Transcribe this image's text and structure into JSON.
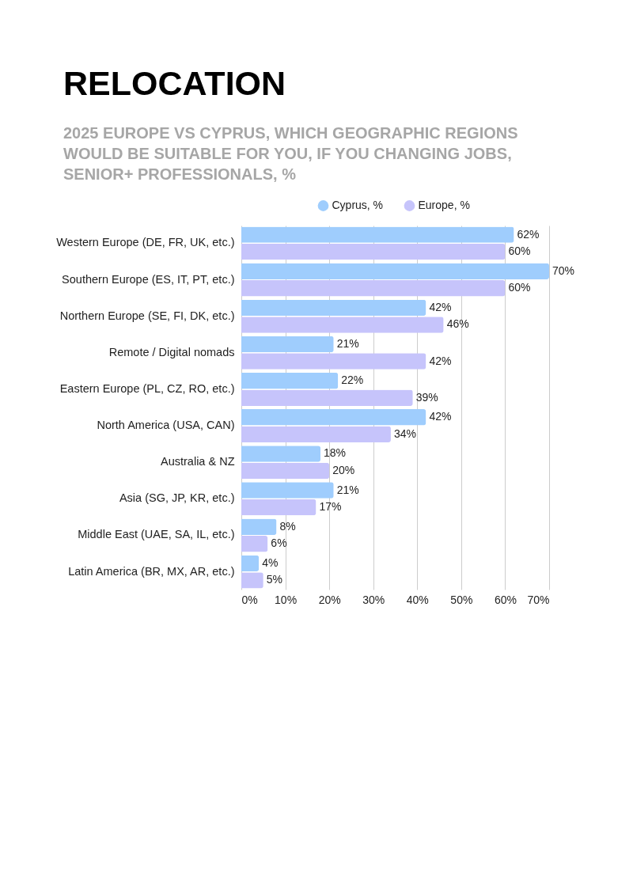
{
  "chart_data": {
    "type": "bar",
    "orientation": "horizontal",
    "title": "RELOCATION",
    "subtitle": "2025 EUROPE VS CYPRUS, WHICH GEOGRAPHIC REGIONS WOULD BE SUITABLE FOR YOU, IF YOU CHANGING JOBS, SENIOR+ PROFESSIONALS, %",
    "categories": [
      "Western Europe (DE, FR, UK, etc.)",
      "Southern Europe (ES, IT, PT, etc.)",
      "Northern Europe (SE, FI, DK, etc.)",
      "Remote / Digital nomads",
      "Eastern Europe (PL, CZ, RO, etc.)",
      "North America (USA, CAN)",
      "Australia & NZ",
      "Asia (SG, JP, KR, etc.)",
      "Middle East (UAE, SA, IL, etc.)",
      "Latin America (BR, MX, AR, etc.)"
    ],
    "series": [
      {
        "name": "Cyprus, %",
        "color": "#9fcdfd",
        "values": [
          62,
          70,
          42,
          21,
          22,
          42,
          18,
          21,
          8,
          4
        ],
        "value_labels": [
          "62%",
          "70%",
          "42%",
          "21%",
          "22%",
          "42%",
          "18%",
          "21%",
          "8%",
          "4%"
        ]
      },
      {
        "name": "Europe, %",
        "color": "#c6c4fb",
        "values": [
          60,
          60,
          46,
          42,
          39,
          34,
          20,
          17,
          6,
          5
        ],
        "value_labels": [
          "60%",
          "60%",
          "46%",
          "42%",
          "39%",
          "34%",
          "20%",
          "17%",
          "6%",
          "5%"
        ]
      }
    ],
    "xlim": [
      0,
      70
    ],
    "xticks": [
      {
        "value": 0,
        "label": "0%"
      },
      {
        "value": 10,
        "label": "10%"
      },
      {
        "value": 20,
        "label": "20%"
      },
      {
        "value": 30,
        "label": "30%"
      },
      {
        "value": 40,
        "label": "40%"
      },
      {
        "value": 50,
        "label": "50%"
      },
      {
        "value": 60,
        "label": "60%"
      },
      {
        "value": 70,
        "label": "70%"
      }
    ],
    "grid": "x",
    "legend": "top"
  }
}
